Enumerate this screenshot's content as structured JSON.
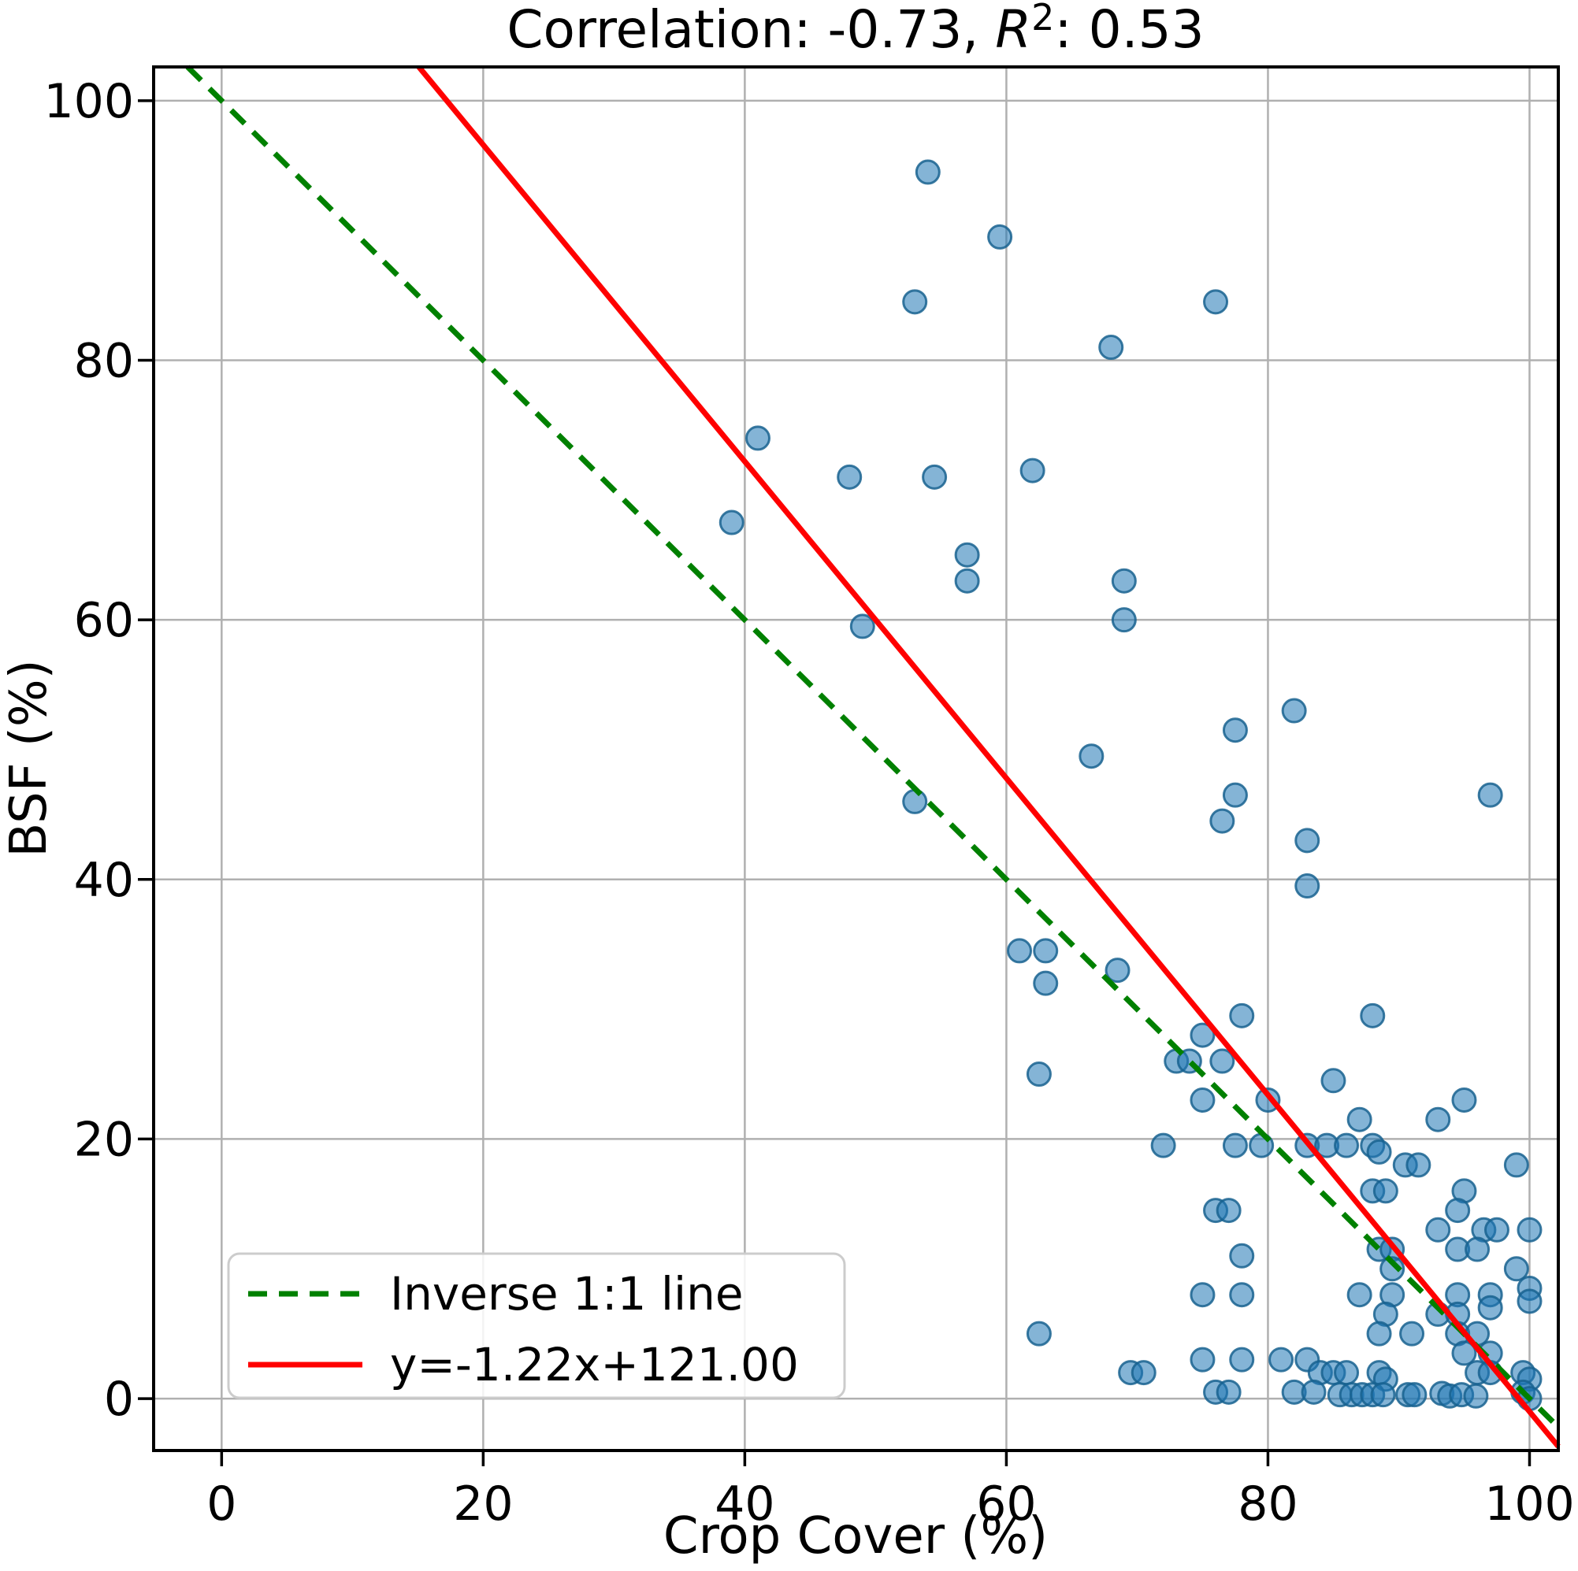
{
  "chart_data": {
    "type": "scatter",
    "title": "Correlation: -0.73, R²: 0.53",
    "title_parts": {
      "prefix": "Correlation: -0.73, ",
      "var": "R",
      "sup": "2",
      "suffix": ": 0.53"
    },
    "xlabel": "Crop Cover (%)",
    "ylabel": "BSF (%)",
    "xlim": [
      -5.2,
      102.2
    ],
    "ylim": [
      -4.0,
      102.6
    ],
    "xticks": [
      0,
      20,
      40,
      60,
      80,
      100
    ],
    "yticks": [
      0,
      20,
      40,
      60,
      80,
      100
    ],
    "grid": true,
    "grid_color": "#b0b0b0",
    "marker": {
      "color": "#1f77b4",
      "edge_color": "#18618f",
      "radius": 14.5,
      "fill_opacity": 0.55,
      "edge_opacity": 0.85
    },
    "lines": [
      {
        "name": "Inverse 1:1 line",
        "style": "dashed",
        "color": "#008000",
        "slope": -1,
        "intercept": 100,
        "width": 7
      },
      {
        "name": "y=-1.22x+121.00",
        "style": "solid",
        "color": "#ff0000",
        "slope": -1.22,
        "intercept": 121,
        "width": 7
      }
    ],
    "legend": {
      "position": "lower left",
      "entries": [
        "Inverse 1:1 line",
        "y=-1.22x+121.00"
      ]
    },
    "points": [
      [
        54,
        94.5
      ],
      [
        59.5,
        89.5
      ],
      [
        53,
        84.5
      ],
      [
        76,
        84.5
      ],
      [
        68,
        81
      ],
      [
        41,
        74
      ],
      [
        48,
        71
      ],
      [
        54.5,
        71
      ],
      [
        62,
        71.5
      ],
      [
        39,
        67.5
      ],
      [
        57,
        65
      ],
      [
        57,
        63
      ],
      [
        69,
        63
      ],
      [
        69,
        60
      ],
      [
        49,
        59.5
      ],
      [
        82,
        53
      ],
      [
        77.5,
        51.5
      ],
      [
        66.5,
        49.5
      ],
      [
        53,
        46
      ],
      [
        77.5,
        46.5
      ],
      [
        97,
        46.5
      ],
      [
        76.5,
        44.5
      ],
      [
        83,
        43
      ],
      [
        83,
        39.5
      ],
      [
        61,
        34.5
      ],
      [
        63,
        34.5
      ],
      [
        68.5,
        33
      ],
      [
        63,
        32
      ],
      [
        88,
        29.5
      ],
      [
        78,
        29.5
      ],
      [
        75,
        28
      ],
      [
        73,
        26
      ],
      [
        74,
        26
      ],
      [
        76.5,
        26
      ],
      [
        62.5,
        25
      ],
      [
        85,
        24.5
      ],
      [
        75,
        23
      ],
      [
        80,
        23
      ],
      [
        95,
        23
      ],
      [
        93,
        21.5
      ],
      [
        87,
        21.5
      ],
      [
        72,
        19.5
      ],
      [
        77.5,
        19.5
      ],
      [
        79.5,
        19.5
      ],
      [
        83,
        19.5
      ],
      [
        84.5,
        19.5
      ],
      [
        86,
        19.5
      ],
      [
        88,
        19.5
      ],
      [
        88.5,
        19
      ],
      [
        90.5,
        18
      ],
      [
        91.5,
        18
      ],
      [
        99,
        18
      ],
      [
        88,
        16
      ],
      [
        89,
        16
      ],
      [
        95,
        16
      ],
      [
        76,
        14.5
      ],
      [
        77,
        14.5
      ],
      [
        94.5,
        14.5
      ],
      [
        93,
        13
      ],
      [
        96.5,
        13
      ],
      [
        97.5,
        13
      ],
      [
        100,
        13
      ],
      [
        88.5,
        11.5
      ],
      [
        89.5,
        11.5
      ],
      [
        94.5,
        11.5
      ],
      [
        96,
        11.5
      ],
      [
        78,
        11
      ],
      [
        89.5,
        10
      ],
      [
        99,
        10
      ],
      [
        75,
        8
      ],
      [
        78,
        8
      ],
      [
        87,
        8
      ],
      [
        89.5,
        8
      ],
      [
        94.5,
        8
      ],
      [
        97,
        8
      ],
      [
        100,
        8.5
      ],
      [
        100,
        7.5
      ],
      [
        89,
        6.5
      ],
      [
        93,
        6.5
      ],
      [
        94.5,
        6.5
      ],
      [
        97,
        7
      ],
      [
        94.5,
        5
      ],
      [
        96,
        5
      ],
      [
        88.5,
        5
      ],
      [
        91,
        5
      ],
      [
        62.5,
        5
      ],
      [
        95,
        3.5
      ],
      [
        97,
        3.5
      ],
      [
        75,
        3
      ],
      [
        78,
        3
      ],
      [
        81,
        3
      ],
      [
        83,
        3
      ],
      [
        69.5,
        2
      ],
      [
        70.5,
        2
      ],
      [
        84,
        2
      ],
      [
        85,
        2
      ],
      [
        86,
        2
      ],
      [
        88.5,
        2
      ],
      [
        89,
        1.5
      ],
      [
        96,
        2
      ],
      [
        97,
        2
      ],
      [
        99.5,
        2
      ],
      [
        100,
        1.5
      ],
      [
        76,
        0.5
      ],
      [
        77,
        0.5
      ],
      [
        82,
        0.5
      ],
      [
        83.5,
        0.5
      ],
      [
        85.5,
        0.3
      ],
      [
        86.4,
        0.3
      ],
      [
        87.2,
        0.3
      ],
      [
        88,
        0.3
      ],
      [
        88.8,
        0.3
      ],
      [
        90.7,
        0.3
      ],
      [
        91.2,
        0.3
      ],
      [
        93.3,
        0.4
      ],
      [
        93.9,
        0.2
      ],
      [
        94.8,
        0.3
      ],
      [
        95.9,
        0.2
      ],
      [
        99.5,
        0.5
      ],
      [
        100,
        0
      ]
    ]
  }
}
